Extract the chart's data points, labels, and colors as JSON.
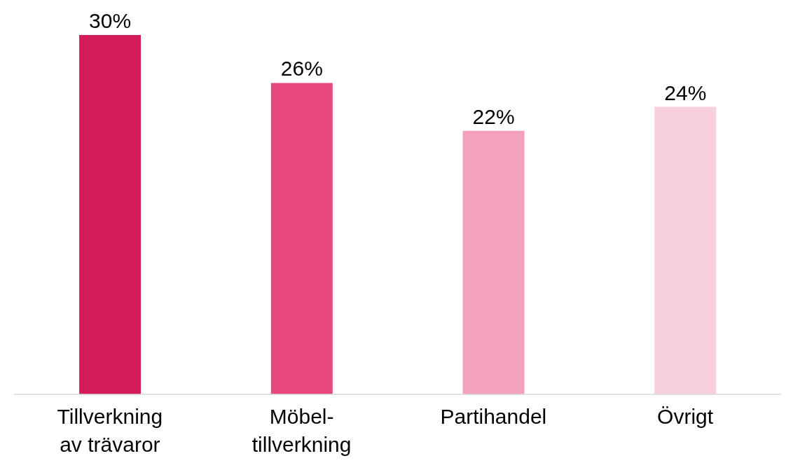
{
  "chart_data": {
    "type": "bar",
    "categories": [
      "Tillverkning\nav trävaror",
      "Möbel-\ntillverkning",
      "Partihandel",
      "Övrigt"
    ],
    "values": [
      30,
      26,
      22,
      24
    ],
    "colors": [
      "#d51c5b",
      "#e8497d",
      "#f3a1bd",
      "#f8cfdc"
    ],
    "value_labels": [
      "30%",
      "26%",
      "22%",
      "24%"
    ]
  }
}
